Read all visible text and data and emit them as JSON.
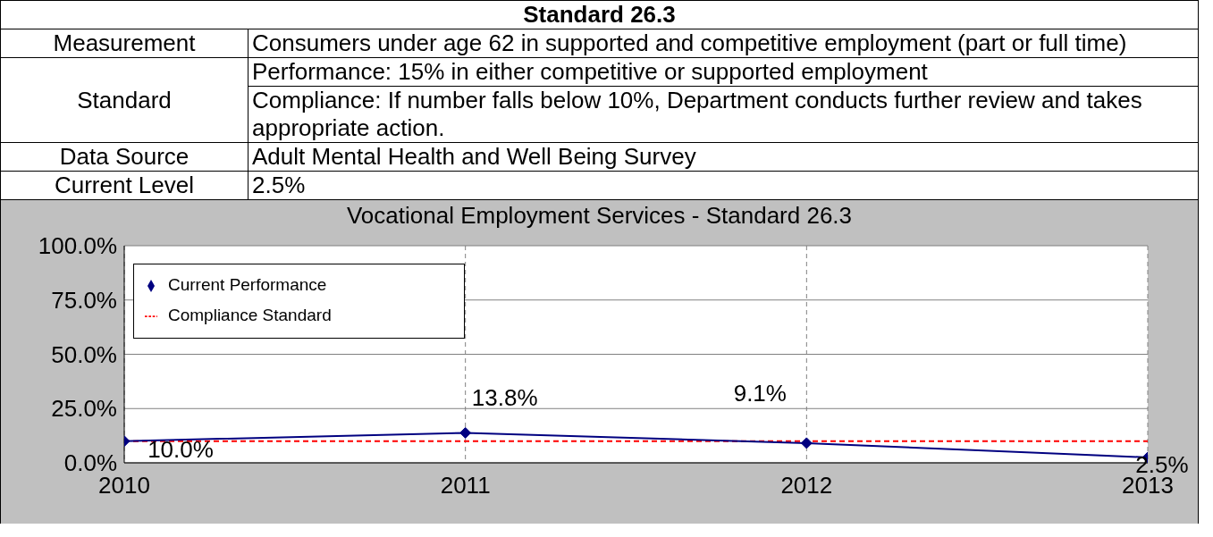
{
  "chart_data": {
    "type": "line",
    "title": "Vocational Employment Services - Standard 26.3",
    "annotations": [
      "Standard 26.3",
      "Measurement",
      "Consumers under age 62 in supported and competitive employment (part or full time)",
      "Standard",
      "Performance:  15% in either competitive or supported employment",
      "Compliance: If number falls below 10%, Department conducts further review and takes appropriate action.",
      "Data Source",
      "Adult Mental Health and Well Being Survey",
      "Current Level",
      "2.5%"
    ],
    "x": [
      2010,
      2011,
      2012,
      2013
    ],
    "xlim": [
      2010,
      2013
    ],
    "xticks": [
      2010,
      2011,
      2012,
      2013
    ],
    "ylim": [
      0,
      100
    ],
    "yticks": [
      {
        "value": 0,
        "label": "0.0%"
      },
      {
        "value": 25,
        "label": "25.0%"
      },
      {
        "value": 50,
        "label": "50.0%"
      },
      {
        "value": 75,
        "label": "75.0%"
      },
      {
        "value": 100,
        "label": "100.0%"
      }
    ],
    "series": [
      {
        "name": "Current Performance",
        "color": "#000080",
        "values": [
          10.0,
          13.8,
          9.1,
          2.5
        ],
        "marker": "diamond",
        "line_style": "solid",
        "value_labels": [
          "10.0%",
          "13.8%",
          "9.1%",
          "2.5%"
        ]
      },
      {
        "name": "Compliance Standard",
        "color": "#ff0000",
        "values": [
          10,
          10,
          10,
          10
        ],
        "marker": "none",
        "line_style": "dashed"
      }
    ],
    "grid": true,
    "legend": "top left"
  }
}
